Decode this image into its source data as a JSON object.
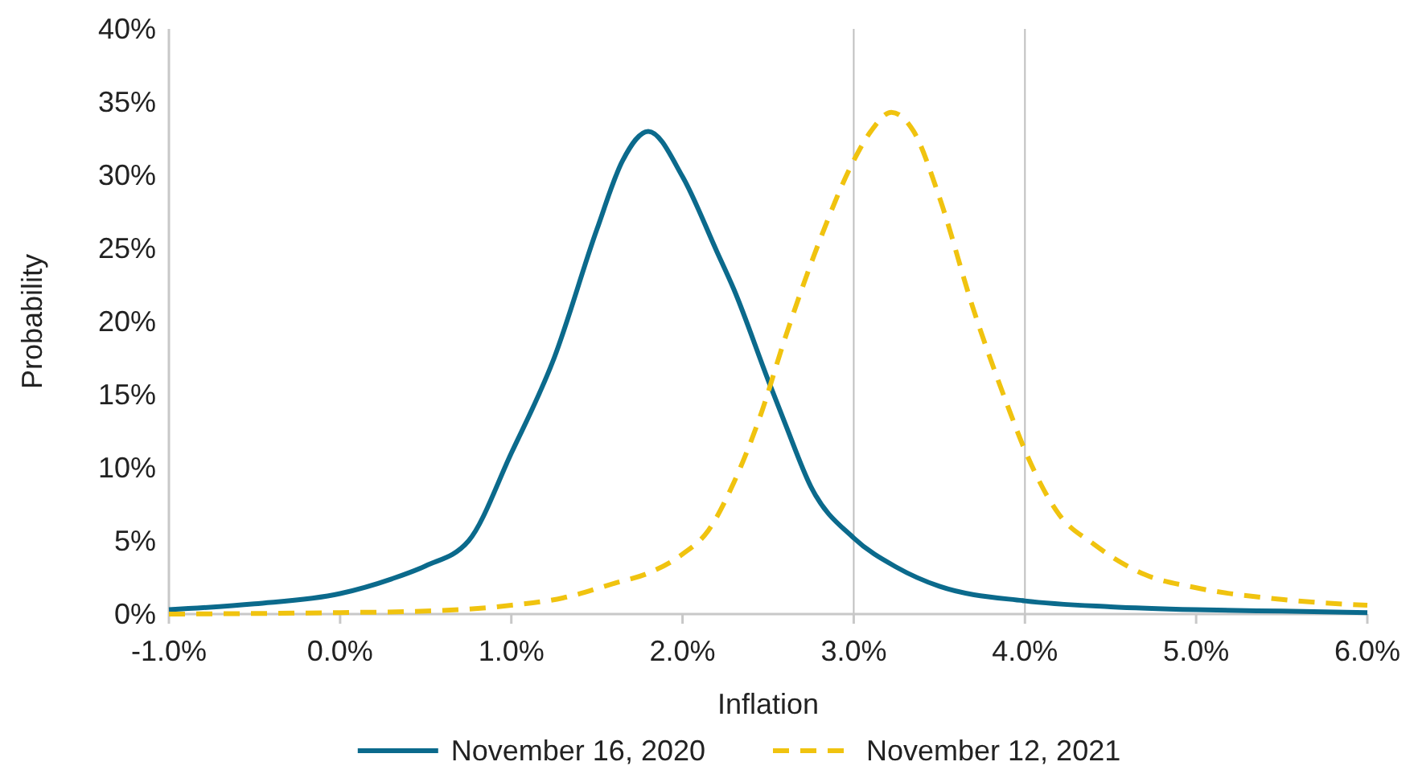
{
  "chart_data": {
    "type": "line",
    "xlabel": "Inflation",
    "ylabel": "Probability",
    "xlim": [
      -1,
      6
    ],
    "ylim": [
      0,
      40
    ],
    "xticks": [
      {
        "value": -1,
        "label": "-1.0%"
      },
      {
        "value": 0,
        "label": "0.0%"
      },
      {
        "value": 1,
        "label": "1.0%"
      },
      {
        "value": 2,
        "label": "2.0%"
      },
      {
        "value": 3,
        "label": "3.0%"
      },
      {
        "value": 4,
        "label": "4.0%"
      },
      {
        "value": 5,
        "label": "5.0%"
      },
      {
        "value": 6,
        "label": "6.0%"
      }
    ],
    "yticks": [
      {
        "value": 0,
        "label": "0%"
      },
      {
        "value": 5,
        "label": "5%"
      },
      {
        "value": 10,
        "label": "10%"
      },
      {
        "value": 15,
        "label": "15%"
      },
      {
        "value": 20,
        "label": "20%"
      },
      {
        "value": 25,
        "label": "25%"
      },
      {
        "value": 30,
        "label": "30%"
      },
      {
        "value": 35,
        "label": "35%"
      },
      {
        "value": 40,
        "label": "40%"
      }
    ],
    "ref_lines": [
      {
        "axis": "x",
        "value": 3,
        "color": "#bfbfbf"
      },
      {
        "axis": "x",
        "value": 4,
        "color": "#bfbfbf"
      }
    ],
    "legend": "bottom",
    "grid": false,
    "series": [
      {
        "name": "November 16, 2020",
        "color": "#0b6a8c",
        "line_style": "solid",
        "x": [
          -1,
          -0.5,
          0,
          0.3,
          0.5,
          0.75,
          1,
          1.25,
          1.5,
          1.65,
          1.8,
          2,
          2.2,
          2.3,
          2.5,
          2.6,
          2.75,
          3,
          3.25,
          3.5,
          4,
          4.5,
          5,
          5.5,
          6
        ],
        "values": [
          0.3,
          0.7,
          1.4,
          2.4,
          3.3,
          5,
          11,
          17.5,
          26.3,
          31,
          33,
          29.9,
          24.8,
          22.2,
          16,
          13,
          8.7,
          5.2,
          3.2,
          1.9,
          0.9,
          0.5,
          0.3,
          0.2,
          0.1
        ]
      },
      {
        "name": "November 12, 2021",
        "color": "#f0c30f",
        "line_style": "dashed",
        "x": [
          -1,
          0,
          0.5,
          1,
          1.3,
          1.6,
          1.8,
          2,
          2.15,
          2.3,
          2.45,
          2.6,
          2.8,
          3,
          3.1,
          3.22,
          3.35,
          3.5,
          3.7,
          3.9,
          4,
          4.2,
          4.4,
          4.7,
          5,
          5.5,
          6
        ],
        "values": [
          0,
          0.1,
          0.2,
          0.6,
          1.1,
          2.1,
          2.8,
          4.1,
          5.7,
          9,
          13.4,
          18.9,
          25.5,
          31,
          33,
          34.3,
          33,
          28.5,
          20.8,
          14.2,
          11.2,
          6.8,
          4.8,
          2.7,
          1.8,
          1,
          0.6
        ]
      }
    ]
  }
}
